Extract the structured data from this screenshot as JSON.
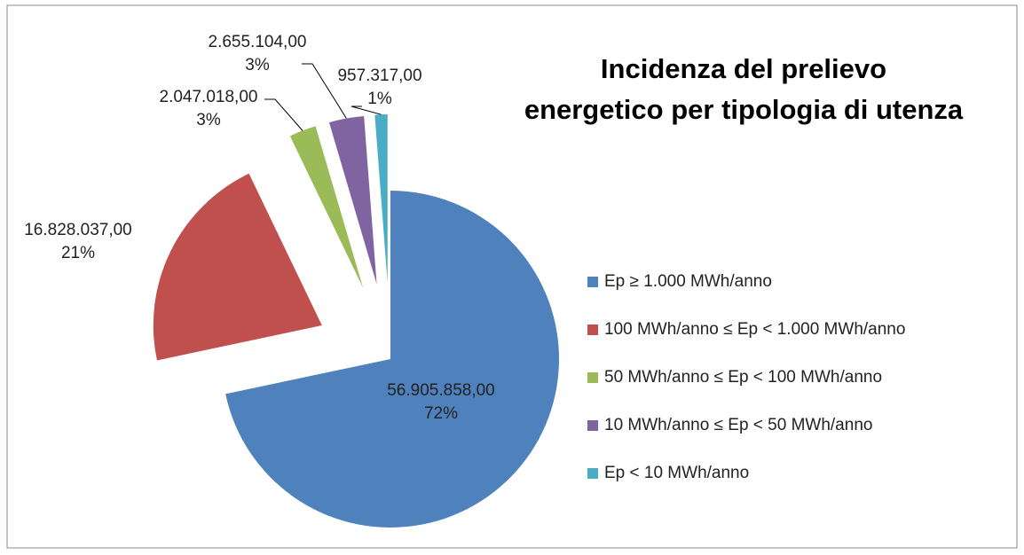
{
  "chart_data": {
    "type": "pie",
    "title": "Incidenza del prelievo energetico per tipologia di utenza",
    "categories": [
      "Ep ≥ 1.000 MWh/anno",
      "100 MWh/anno ≤ Ep < 1.000 MWh/anno",
      "50 MWh/anno ≤ Ep < 100 MWh/anno",
      "10 MWh/anno ≤ Ep < 50 MWh/anno",
      "Ep < 10 MWh/anno"
    ],
    "values": [
      56905858,
      16828037,
      2047018,
      2655104,
      957317
    ],
    "value_labels": [
      "56.905.858,00",
      "16.828.037,00",
      "2.047.018,00",
      "2.655.104,00",
      "957.317,00"
    ],
    "percents": [
      72,
      21,
      3,
      3,
      1
    ],
    "percent_labels": [
      "72%",
      "21%",
      "3%",
      "3%",
      "1%"
    ],
    "colors": [
      "#4f81bd",
      "#c0504d",
      "#9bbb59",
      "#8064a2",
      "#4bacc6"
    ],
    "legend": "right"
  }
}
